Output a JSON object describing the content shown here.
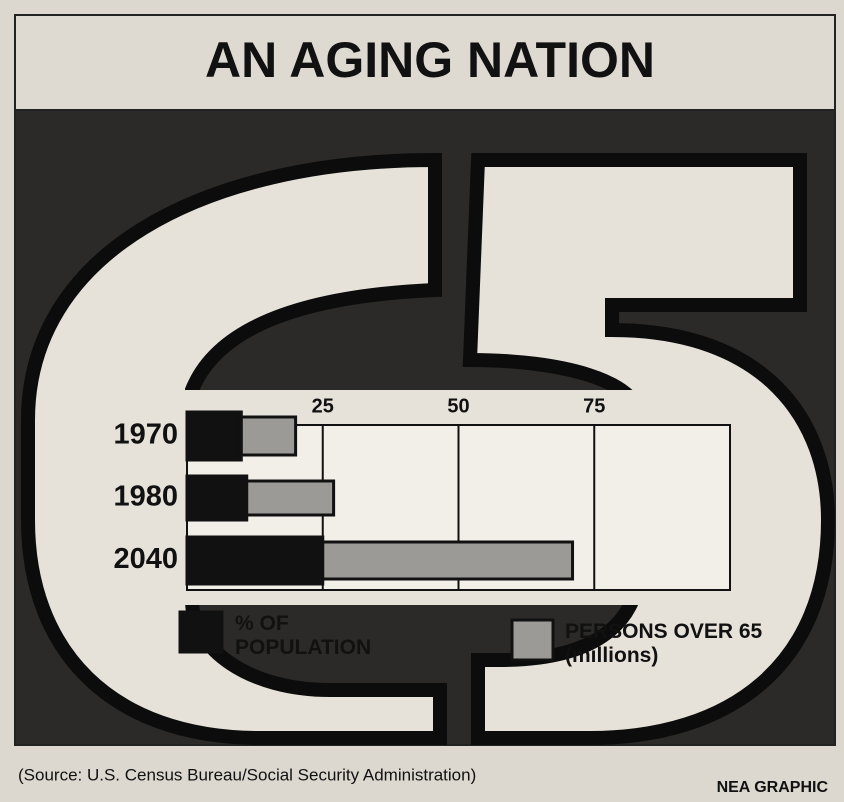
{
  "chart_data": {
    "type": "bar",
    "orientation": "horizontal",
    "title": "AN AGING NATION",
    "categories": [
      "1970",
      "1980",
      "2040"
    ],
    "series": [
      {
        "name": "PERSONS OVER 65 (millions)",
        "color": "#9c9a96",
        "values": [
          20,
          27,
          71
        ]
      },
      {
        "name": "% OF POPULATION",
        "color": "#111111",
        "values": [
          10,
          11,
          25
        ]
      }
    ],
    "xlim": [
      0,
      100
    ],
    "xticks": [
      25,
      50,
      75
    ],
    "grid": true,
    "source": "(Source: U.S. Census Bureau/Social Security Administration)",
    "credit": "NEA GRAPHIC"
  }
}
